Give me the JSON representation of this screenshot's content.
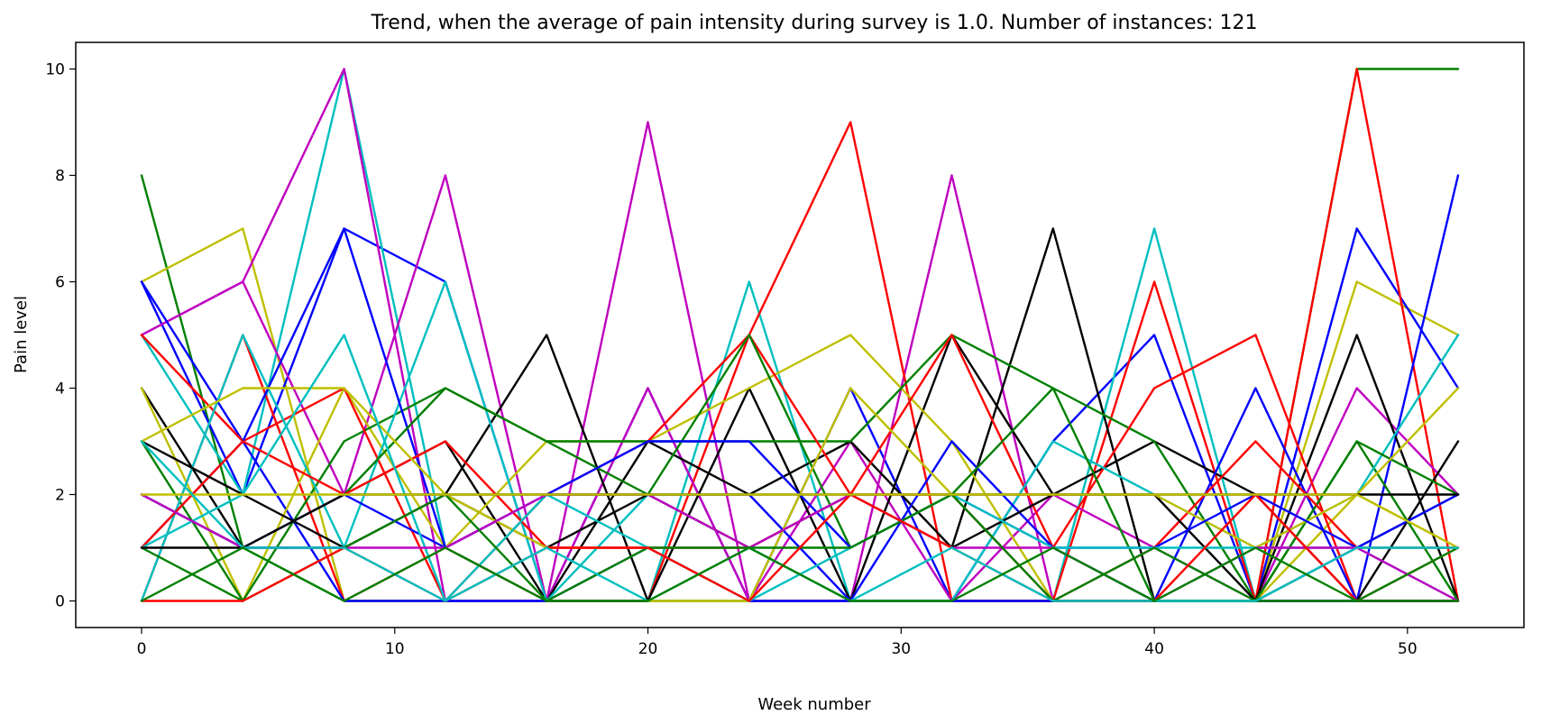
{
  "chart_data": {
    "type": "line",
    "title": "Trend, when the average of pain intensity during survey is 1.0. Number of instances: 121",
    "xlabel": "Week number",
    "ylabel": "Pain level",
    "xlim": [
      -2.6,
      54.6
    ],
    "ylim": [
      -0.5,
      10.5
    ],
    "xticks": [
      0,
      10,
      20,
      30,
      40,
      50
    ],
    "yticks": [
      0,
      2,
      4,
      6,
      8,
      10
    ],
    "grid": false,
    "legend": "none",
    "x": [
      0,
      4,
      8,
      12,
      16,
      20,
      24,
      28,
      32,
      36,
      40,
      44,
      48,
      52
    ],
    "series": [
      {
        "color": "#008000",
        "values": [
          8,
          1,
          0,
          0,
          0,
          0,
          0,
          0,
          0,
          0,
          0,
          0,
          10,
          10
        ]
      },
      {
        "color": "#bfbf00",
        "values": [
          6,
          7,
          0,
          0,
          0,
          0,
          0,
          0,
          0,
          0,
          0,
          0,
          6,
          5
        ]
      },
      {
        "color": "#0000ff",
        "values": [
          6,
          2,
          7,
          6,
          0,
          4,
          0,
          4,
          0,
          3,
          5,
          0,
          7,
          4
        ]
      },
      {
        "color": "#00bfbf",
        "values": [
          5,
          2,
          10,
          1,
          0,
          0,
          6,
          0,
          0,
          0,
          7,
          0,
          0,
          0
        ]
      },
      {
        "color": "#bf00bf",
        "values": [
          5,
          6,
          10,
          0,
          0,
          9,
          0,
          0,
          8,
          0,
          0,
          0,
          0,
          0
        ]
      },
      {
        "color": "#ff0000",
        "values": [
          0,
          5,
          0,
          1,
          0,
          0,
          5,
          9,
          0,
          0,
          6,
          0,
          10,
          0
        ]
      },
      {
        "color": "#bf00bf",
        "values": [
          5,
          6,
          2,
          8,
          0,
          4,
          0,
          3,
          0,
          2,
          1,
          0,
          4,
          2
        ]
      },
      {
        "color": "#0000ff",
        "values": [
          6,
          3,
          0,
          0,
          0,
          1,
          0,
          0,
          0,
          0,
          0,
          0,
          0,
          8
        ]
      },
      {
        "color": "#000000",
        "values": [
          4,
          1,
          2,
          3,
          0,
          3,
          2,
          3,
          1,
          7,
          0,
          0,
          5,
          0
        ]
      },
      {
        "color": "#000000",
        "values": [
          2,
          1,
          1,
          2,
          5,
          0,
          4,
          0,
          5,
          2,
          3,
          2,
          0,
          3
        ]
      },
      {
        "color": "#bfbf00",
        "values": [
          4,
          0,
          4,
          1,
          3,
          3,
          4,
          5,
          3,
          0,
          0,
          0,
          2,
          1
        ]
      },
      {
        "color": "#008000",
        "values": [
          3,
          0,
          3,
          4,
          3,
          3,
          3,
          3,
          5,
          4,
          3,
          0,
          3,
          0
        ]
      },
      {
        "color": "#ff0000",
        "values": [
          5,
          3,
          4,
          0,
          2,
          3,
          5,
          2,
          5,
          1,
          4,
          5,
          0,
          1
        ]
      },
      {
        "color": "#00bfbf",
        "values": [
          0,
          5,
          1,
          6,
          0,
          2,
          1,
          0,
          0,
          3,
          2,
          1,
          2,
          5
        ]
      },
      {
        "color": "#0000ff",
        "values": [
          1,
          3,
          7,
          1,
          2,
          2,
          2,
          0,
          3,
          1,
          0,
          4,
          0,
          0
        ]
      },
      {
        "color": "#008000",
        "values": [
          2,
          1,
          2,
          4,
          3,
          2,
          5,
          1,
          2,
          4,
          0,
          0,
          3,
          2
        ]
      },
      {
        "color": "#ff0000",
        "values": [
          1,
          3,
          2,
          3,
          1,
          1,
          1,
          2,
          2,
          0,
          1,
          3,
          1,
          1
        ]
      },
      {
        "color": "#000000",
        "values": [
          3,
          2,
          1,
          2,
          1,
          2,
          1,
          2,
          1,
          2,
          2,
          0,
          1,
          2
        ]
      },
      {
        "color": "#bfbf00",
        "values": [
          3,
          4,
          4,
          2,
          1,
          1,
          0,
          4,
          2,
          2,
          2,
          1,
          2,
          4
        ]
      },
      {
        "color": "#0000ff",
        "values": [
          2,
          1,
          2,
          1,
          2,
          3,
          3,
          1,
          2,
          1,
          1,
          2,
          1,
          2
        ]
      },
      {
        "color": "#00bfbf",
        "values": [
          1,
          2,
          5,
          0,
          2,
          1,
          0,
          1,
          2,
          1,
          1,
          1,
          1,
          0
        ]
      },
      {
        "color": "#bf00bf",
        "values": [
          2,
          1,
          1,
          1,
          2,
          2,
          1,
          2,
          1,
          1,
          0,
          1,
          1,
          0
        ]
      },
      {
        "color": "#008000",
        "values": [
          1,
          0,
          1,
          2,
          0,
          1,
          1,
          1,
          2,
          0,
          1,
          0,
          0,
          1
        ]
      },
      {
        "color": "#ff0000",
        "values": [
          0,
          0,
          1,
          0,
          1,
          1,
          0,
          2,
          1,
          0,
          0,
          2,
          0,
          0
        ]
      },
      {
        "color": "#000000",
        "values": [
          1,
          1,
          2,
          2,
          2,
          2,
          2,
          2,
          2,
          2,
          2,
          2,
          2,
          2
        ]
      },
      {
        "color": "#bfbf00",
        "values": [
          2,
          2,
          2,
          2,
          2,
          2,
          2,
          2,
          2,
          2,
          2,
          2,
          2,
          1
        ]
      },
      {
        "color": "#00bfbf",
        "values": [
          3,
          1,
          1,
          0,
          1,
          0,
          1,
          0,
          1,
          0,
          0,
          0,
          1,
          1
        ]
      },
      {
        "color": "#008000",
        "values": [
          0,
          1,
          0,
          1,
          0,
          0,
          1,
          0,
          0,
          1,
          0,
          1,
          0,
          0
        ]
      }
    ]
  }
}
